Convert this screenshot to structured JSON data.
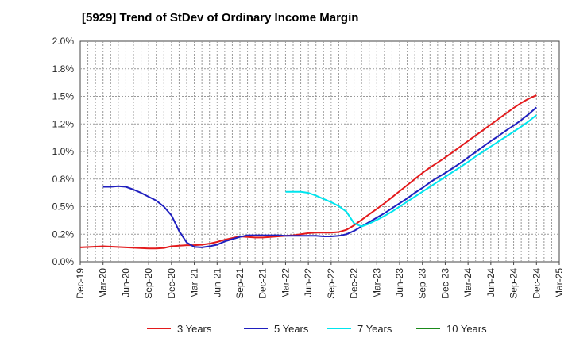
{
  "chart_data": {
    "type": "line",
    "title": "[5929]  Trend of StDev of Ordinary Income Margin",
    "xlabel": "",
    "ylabel": "",
    "ylim": [
      0,
      2.0
    ],
    "yticks": [
      "0.0%",
      "0.2%",
      "0.5%",
      "0.8%",
      "1.0%",
      "1.2%",
      "1.5%",
      "1.8%",
      "2.0%"
    ],
    "xticks": [
      "Dec-19",
      "Mar-20",
      "Jun-20",
      "Sep-20",
      "Dec-20",
      "Mar-21",
      "Jun-21",
      "Sep-21",
      "Dec-21",
      "Mar-22",
      "Jun-22",
      "Sep-22",
      "Dec-22",
      "Mar-23",
      "Jun-23",
      "Sep-23",
      "Dec-23",
      "Mar-24",
      "Jun-24",
      "Sep-24",
      "Dec-24",
      "Mar-25"
    ],
    "grid": true,
    "legend_position": "bottom",
    "series": [
      {
        "name": "3 Years",
        "color": "#e31a1c",
        "x": [
          "Dec-19",
          "Mar-20",
          "Jun-20",
          "Sep-20",
          "Oct-20",
          "Nov-20",
          "Dec-20",
          "Jan-21",
          "Feb-21",
          "Mar-21",
          "Apr-21",
          "May-21",
          "Jun-21",
          "Jul-21",
          "Aug-21",
          "Sep-21",
          "Oct-21",
          "Nov-21",
          "Dec-21",
          "Jan-22",
          "Feb-22",
          "Mar-22",
          "Apr-22",
          "May-22",
          "Jun-22",
          "Jul-22",
          "Aug-22",
          "Sep-22",
          "Oct-22",
          "Nov-22",
          "Dec-22",
          "Jan-23",
          "Feb-23",
          "Mar-23",
          "Apr-23",
          "May-23",
          "Jun-23",
          "Jul-23",
          "Aug-23",
          "Sep-23",
          "Oct-23",
          "Nov-23",
          "Dec-23",
          "Jan-24",
          "Feb-24",
          "Mar-24",
          "Apr-24",
          "May-24",
          "Jun-24",
          "Jul-24",
          "Aug-24",
          "Sep-24",
          "Oct-24",
          "Nov-24",
          "Dec-24"
        ],
        "values": [
          0.13,
          0.14,
          0.13,
          0.12,
          0.12,
          0.125,
          0.14,
          0.145,
          0.15,
          0.15,
          0.155,
          0.165,
          0.18,
          0.2,
          0.215,
          0.23,
          0.225,
          0.22,
          0.22,
          0.225,
          0.23,
          0.235,
          0.24,
          0.25,
          0.26,
          0.265,
          0.265,
          0.265,
          0.27,
          0.29,
          0.33,
          0.38,
          0.43,
          0.48,
          0.53,
          0.585,
          0.64,
          0.695,
          0.75,
          0.805,
          0.855,
          0.9,
          0.945,
          0.995,
          1.045,
          1.095,
          1.145,
          1.195,
          1.245,
          1.295,
          1.345,
          1.395,
          1.44,
          1.48,
          1.51
        ]
      },
      {
        "name": "5 Years",
        "color": "#1f1fbf",
        "x": [
          "Mar-20",
          "Apr-20",
          "May-20",
          "Jun-20",
          "Jul-20",
          "Aug-20",
          "Sep-20",
          "Oct-20",
          "Nov-20",
          "Dec-20",
          "Jan-21",
          "Feb-21",
          "Mar-21",
          "Apr-21",
          "May-21",
          "Jun-21",
          "Jul-21",
          "Aug-21",
          "Sep-21",
          "Oct-21",
          "Nov-21",
          "Dec-21",
          "Jan-22",
          "Feb-22",
          "Mar-22",
          "Apr-22",
          "May-22",
          "Jun-22",
          "Jul-22",
          "Aug-22",
          "Sep-22",
          "Oct-22",
          "Nov-22",
          "Dec-22",
          "Jan-23",
          "Feb-23",
          "Mar-23",
          "Apr-23",
          "May-23",
          "Jun-23",
          "Jul-23",
          "Aug-23",
          "Sep-23",
          "Oct-23",
          "Nov-23",
          "Dec-23",
          "Jan-24",
          "Feb-24",
          "Mar-24",
          "Apr-24",
          "May-24",
          "Jun-24",
          "Jul-24",
          "Aug-24",
          "Sep-24",
          "Oct-24",
          "Nov-24",
          "Dec-24"
        ],
        "values": [
          0.68,
          0.68,
          0.685,
          0.68,
          0.655,
          0.625,
          0.59,
          0.555,
          0.5,
          0.42,
          0.28,
          0.175,
          0.135,
          0.13,
          0.14,
          0.155,
          0.185,
          0.205,
          0.225,
          0.24,
          0.24,
          0.24,
          0.24,
          0.24,
          0.235,
          0.235,
          0.235,
          0.235,
          0.235,
          0.23,
          0.23,
          0.235,
          0.25,
          0.28,
          0.32,
          0.36,
          0.4,
          0.44,
          0.485,
          0.53,
          0.575,
          0.625,
          0.67,
          0.72,
          0.765,
          0.805,
          0.85,
          0.895,
          0.945,
          0.995,
          1.045,
          1.095,
          1.14,
          1.19,
          1.235,
          1.285,
          1.34,
          1.4
        ]
      },
      {
        "name": "7 Years",
        "color": "#00e5ee",
        "x": [
          "Mar-22",
          "Apr-22",
          "May-22",
          "Jun-22",
          "Jul-22",
          "Aug-22",
          "Sep-22",
          "Oct-22",
          "Nov-22",
          "Dec-22",
          "Jan-23",
          "Feb-23",
          "Mar-23",
          "Apr-23",
          "May-23",
          "Jun-23",
          "Jul-23",
          "Aug-23",
          "Sep-23",
          "Oct-23",
          "Nov-23",
          "Dec-23",
          "Jan-24",
          "Feb-24",
          "Mar-24",
          "Apr-24",
          "May-24",
          "Jun-24",
          "Jul-24",
          "Aug-24",
          "Sep-24",
          "Oct-24",
          "Nov-24",
          "Dec-24"
        ],
        "values": [
          0.635,
          0.635,
          0.635,
          0.625,
          0.6,
          0.57,
          0.54,
          0.505,
          0.455,
          0.35,
          0.32,
          0.345,
          0.38,
          0.415,
          0.455,
          0.5,
          0.545,
          0.59,
          0.635,
          0.68,
          0.725,
          0.77,
          0.815,
          0.86,
          0.905,
          0.955,
          1.0,
          1.045,
          1.09,
          1.135,
          1.18,
          1.225,
          1.275,
          1.33
        ]
      },
      {
        "name": "10 Years",
        "color": "#1a8a1a",
        "x": [],
        "values": []
      }
    ]
  }
}
